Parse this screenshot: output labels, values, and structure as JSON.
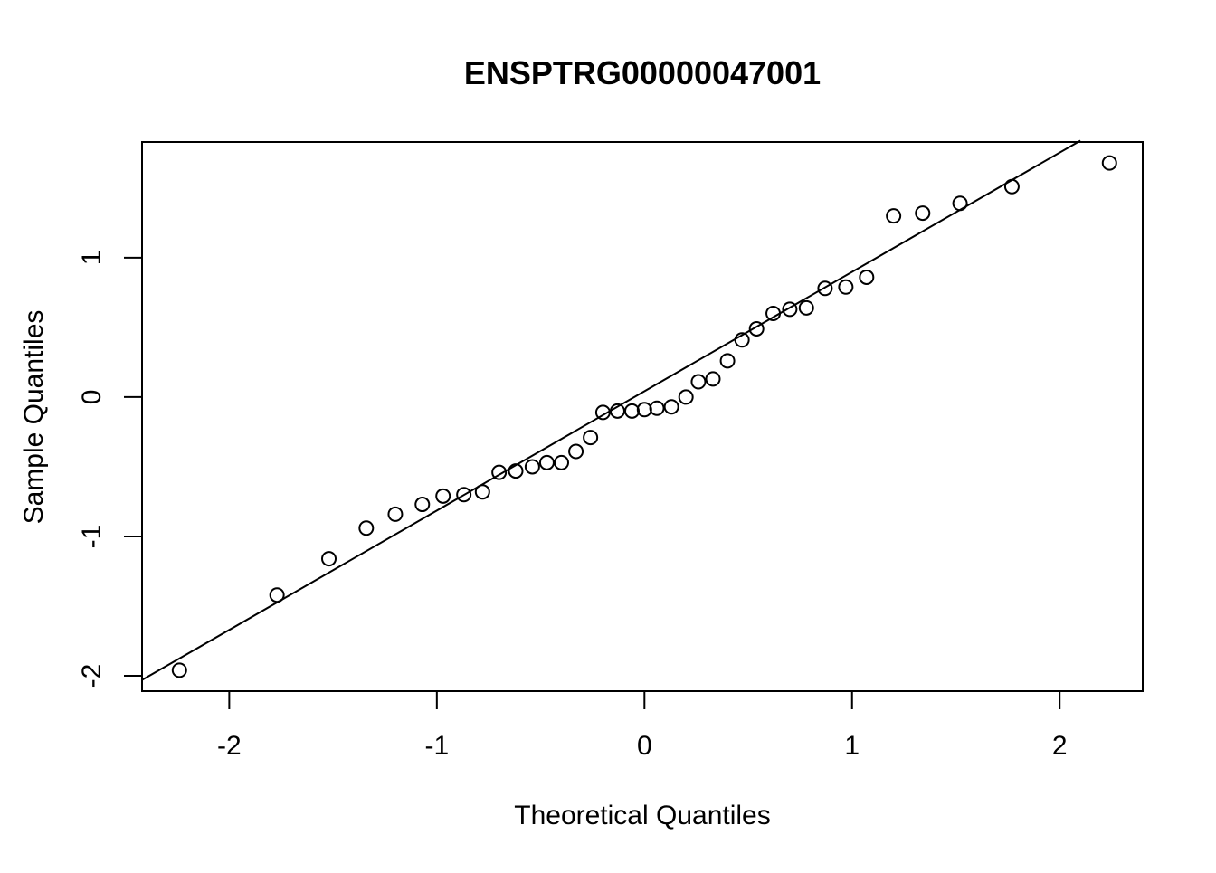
{
  "chart_data": {
    "type": "scatter",
    "title": "ENSPTRG00000047001",
    "xlabel": "Theoretical Quantiles",
    "ylabel": "Sample Quantiles",
    "xlim": [
      -2.42,
      2.4
    ],
    "ylim": [
      -2.11,
      1.83
    ],
    "x_ticks": [
      -2,
      -1,
      0,
      1,
      2
    ],
    "y_ticks": [
      -2,
      -1,
      0,
      1
    ],
    "grid": false,
    "legend": "none",
    "marker": "open-circle",
    "colors": {
      "points": "#000000",
      "line": "#000000",
      "frame": "#000000"
    },
    "reference_line": {
      "x": [
        -2.42,
        2.1
      ],
      "y": [
        -2.03,
        1.84
      ]
    },
    "points": {
      "x": [
        -2.24,
        -1.77,
        -1.52,
        -1.34,
        -1.2,
        -1.07,
        -0.97,
        -0.87,
        -0.78,
        -0.7,
        -0.62,
        -0.54,
        -0.47,
        -0.4,
        -0.33,
        -0.26,
        -0.2,
        -0.13,
        -0.06,
        0.0,
        0.06,
        0.13,
        0.2,
        0.26,
        0.33,
        0.4,
        0.47,
        0.54,
        0.62,
        0.7,
        0.78,
        0.87,
        0.97,
        1.07,
        1.2,
        1.34,
        1.52,
        1.77,
        2.24
      ],
      "y": [
        -1.96,
        -1.42,
        -1.16,
        -0.94,
        -0.84,
        -0.77,
        -0.71,
        -0.7,
        -0.68,
        -0.54,
        -0.53,
        -0.5,
        -0.47,
        -0.47,
        -0.39,
        -0.29,
        -0.11,
        -0.1,
        -0.1,
        -0.09,
        -0.08,
        -0.07,
        0.0,
        0.11,
        0.13,
        0.26,
        0.41,
        0.49,
        0.6,
        0.63,
        0.64,
        0.78,
        0.79,
        0.86,
        1.3,
        1.32,
        1.39,
        1.51,
        1.68
      ]
    }
  }
}
